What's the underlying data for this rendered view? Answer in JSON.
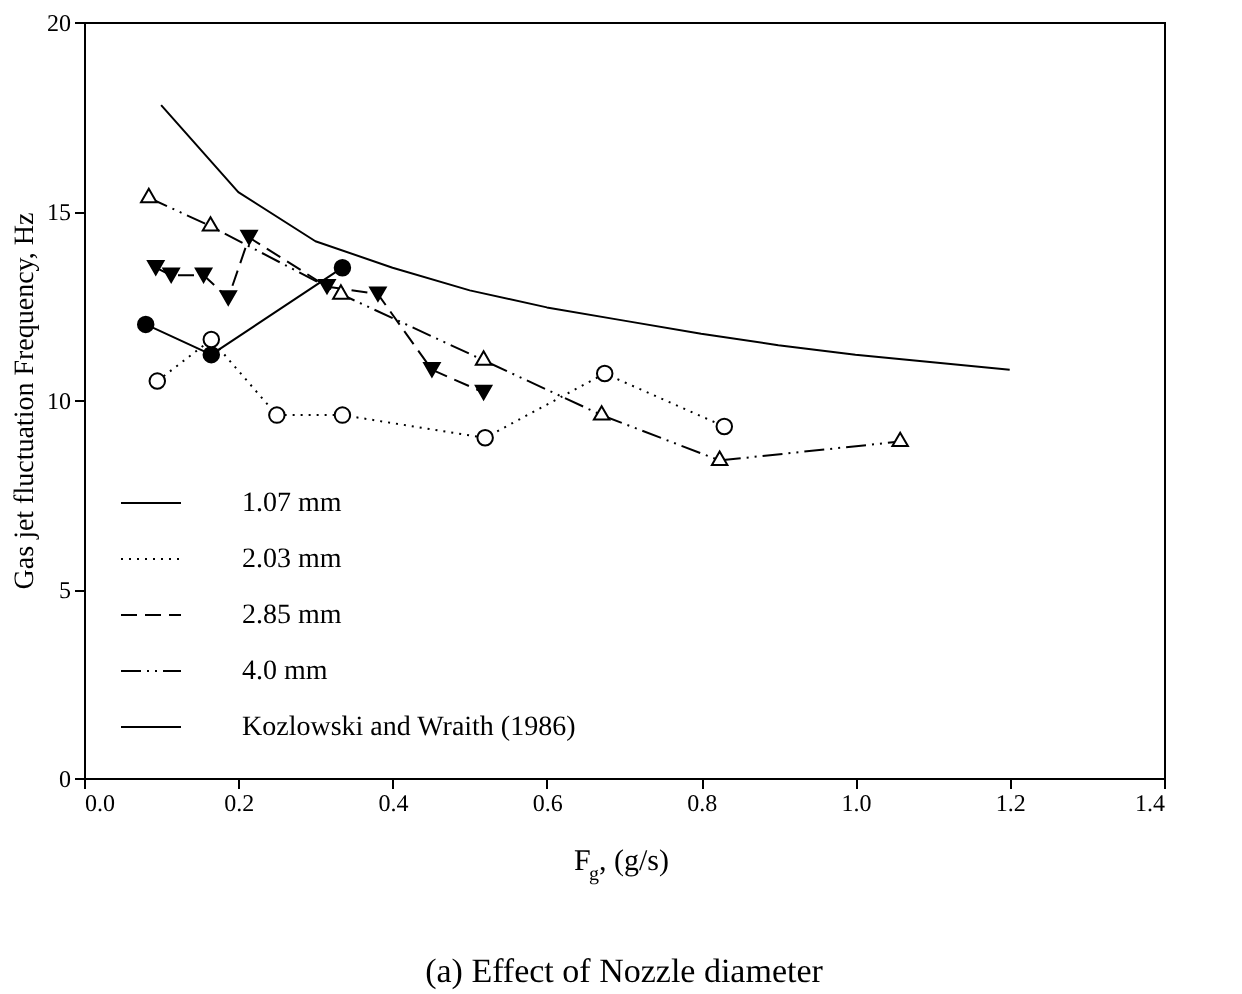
{
  "chart_data": {
    "type": "line",
    "title": "(a) Effect of Nozzle diameter",
    "xlabel": "F$_{g}$, (g/s)",
    "ylabel": "Gas jet fluctuation Frequency, Hz",
    "xlim": [
      0,
      1.4
    ],
    "xticks": [
      {
        "value": 0,
        "label": "0.0"
      },
      {
        "value": 0.2,
        "label": "0.2"
      },
      {
        "value": 0.4,
        "label": "0.4"
      },
      {
        "value": 0.6,
        "label": "0.6"
      },
      {
        "value": 0.8,
        "label": "0.8"
      },
      {
        "value": 1,
        "label": "1.0"
      },
      {
        "value": 1.2,
        "label": "1.2"
      },
      {
        "value": 1.4,
        "label": "1.4"
      }
    ],
    "ylim": [
      0,
      20
    ],
    "yticks": [
      0,
      5,
      10,
      15,
      20
    ],
    "grid": false,
    "legend": "bottom left",
    "series": [
      {
        "name": "1.07 mm",
        "color": "#000000",
        "marker": "circle",
        "line_style": "solid",
        "x": [
          0.08,
          0.165,
          0.335
        ],
        "values": [
          12.0,
          11.2,
          13.5
        ]
      },
      {
        "name": "2.03 mm",
        "color": "#000000",
        "marker": "circle",
        "line_style": "dotted",
        "x": [
          0.095,
          0.165,
          0.25,
          0.335,
          0.52,
          0.675,
          0.83
        ],
        "values": [
          10.5,
          11.6,
          9.6,
          9.6,
          9.0,
          10.7,
          9.3
        ]
      },
      {
        "name": "2.85 mm",
        "color": "#000000",
        "marker": "triangle",
        "line_style": "dashed",
        "x": [
          0.093,
          0.113,
          0.155,
          0.187,
          0.214,
          0.315,
          0.381,
          0.451,
          0.518
        ],
        "values": [
          13.5,
          13.3,
          13.3,
          12.7,
          14.3,
          13.0,
          12.8,
          10.8,
          10.2
        ]
      },
      {
        "name": "4.0  mm",
        "color": "#000000",
        "marker": "triangle",
        "line_style": "dashed",
        "x": [
          0.084,
          0.164,
          0.333,
          0.518,
          0.671,
          0.824,
          1.058
        ],
        "values": [
          15.35,
          14.6,
          12.8,
          11.05,
          9.6,
          8.4,
          8.9
        ]
      },
      {
        "name": "Kozlowski and Wraith (1986)",
        "color": "#000000",
        "marker": "none",
        "line_style": "solid",
        "x": [
          0.1,
          0.2,
          0.3,
          0.4,
          0.5,
          0.6,
          0.7,
          0.8,
          0.9,
          1.0,
          1.1,
          1.2
        ],
        "values": [
          17.8,
          15.5,
          14.2,
          13.5,
          12.9,
          12.45,
          12.1,
          11.75,
          11.45,
          11.2,
          11.0,
          10.8
        ]
      }
    ]
  }
}
